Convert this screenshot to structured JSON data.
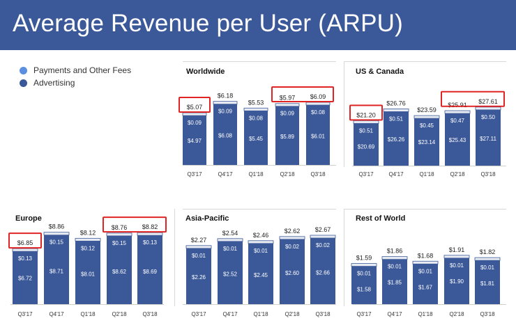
{
  "page": {
    "title": "Average Revenue per User (ARPU)"
  },
  "legend": {
    "items": [
      {
        "label": "Payments and Other Fees",
        "color": "#5b8fe0"
      },
      {
        "label": "Advertising",
        "color": "#3b5999"
      }
    ]
  },
  "colors": {
    "header": "#3b5999",
    "bar": "#3b5999",
    "bar_top": "#e8ebf1",
    "highlight_box": "#e02424",
    "axis": "#888888"
  },
  "chart_data": [
    {
      "type": "bar",
      "stacked": true,
      "title": "Worldwide",
      "categories": [
        "Q3'17",
        "Q4'17",
        "Q1'18",
        "Q2'18",
        "Q3'18"
      ],
      "series": [
        {
          "name": "Advertising",
          "values": [
            4.97,
            6.08,
            5.45,
            5.89,
            6.01
          ],
          "labels": [
            "$4.97",
            "$6.08",
            "$5.45",
            "$5.89",
            "$6.01"
          ]
        },
        {
          "name": "Payments and Other Fees",
          "values": [
            0.09,
            0.09,
            0.08,
            0.09,
            0.08
          ],
          "labels": [
            "$0.09",
            "$0.09",
            "$0.08",
            "$0.09",
            "$0.08"
          ]
        }
      ],
      "totals": [
        5.07,
        6.18,
        5.53,
        5.97,
        6.09
      ],
      "total_labels": [
        "$5.07",
        "$6.18",
        "$5.53",
        "$5.97",
        "$6.09"
      ],
      "highlighted": [
        [
          0
        ],
        [
          3,
          4
        ]
      ],
      "ylim": [
        0,
        6.9
      ]
    },
    {
      "type": "bar",
      "stacked": true,
      "title": "US & Canada",
      "categories": [
        "Q3'17",
        "Q4'17",
        "Q1'18",
        "Q2'18",
        "Q3'18"
      ],
      "series": [
        {
          "name": "Advertising",
          "values": [
            20.69,
            26.26,
            23.14,
            25.43,
            27.11
          ],
          "labels": [
            "$20.69",
            "$26.26",
            "$23.14",
            "$25.43",
            "$27.11"
          ]
        },
        {
          "name": "Payments and Other Fees",
          "values": [
            0.51,
            0.51,
            0.45,
            0.47,
            0.5
          ],
          "labels": [
            "$0.51",
            "$0.51",
            "$0.45",
            "$0.47",
            "$0.50"
          ]
        }
      ],
      "totals": [
        21.2,
        26.76,
        23.59,
        25.91,
        27.61
      ],
      "total_labels": [
        "$21.20",
        "$26.76",
        "$23.59",
        "$25.91",
        "$27.61"
      ],
      "highlighted": [
        [
          0
        ],
        [
          3,
          4
        ]
      ],
      "ylim": [
        0,
        30.5
      ]
    },
    {
      "type": "bar",
      "stacked": true,
      "title": "Europe",
      "categories": [
        "Q3'17",
        "Q4'17",
        "Q1'18",
        "Q2'18",
        "Q3'18"
      ],
      "series": [
        {
          "name": "Advertising",
          "values": [
            6.72,
            8.71,
            8.01,
            8.62,
            8.69
          ],
          "labels": [
            "$6.72",
            "$8.71",
            "$8.01",
            "$8.62",
            "$8.69"
          ]
        },
        {
          "name": "Payments and Other Fees",
          "values": [
            0.13,
            0.15,
            0.12,
            0.15,
            0.13
          ],
          "labels": [
            "$0.13",
            "$0.15",
            "$0.12",
            "$0.15",
            "$0.13"
          ]
        }
      ],
      "totals": [
        6.85,
        8.86,
        8.12,
        8.76,
        8.82
      ],
      "total_labels": [
        "$6.85",
        "$8.86",
        "$8.12",
        "$8.76",
        "$8.82"
      ],
      "highlighted": [
        [
          0
        ],
        [
          3,
          4
        ]
      ],
      "ylim": [
        0,
        9.35
      ]
    },
    {
      "type": "bar",
      "stacked": true,
      "title": "Asia-Pacific",
      "categories": [
        "Q3'17",
        "Q4'17",
        "Q1'18",
        "Q2'18",
        "Q3'18"
      ],
      "series": [
        {
          "name": "Advertising",
          "values": [
            2.26,
            2.52,
            2.45,
            2.6,
            2.66
          ],
          "labels": [
            "$2.26",
            "$2.52",
            "$2.45",
            "$2.60",
            "$2.66"
          ]
        },
        {
          "name": "Payments and Other Fees",
          "values": [
            0.01,
            0.01,
            0.01,
            0.02,
            0.02
          ],
          "labels": [
            "$0.01",
            "$0.01",
            "$0.01",
            "$0.02",
            "$0.02"
          ]
        }
      ],
      "totals": [
        2.27,
        2.54,
        2.46,
        2.62,
        2.67
      ],
      "total_labels": [
        "$2.27",
        "$2.54",
        "$2.46",
        "$2.62",
        "$2.67"
      ],
      "highlighted": [],
      "ylim": [
        0,
        2.67
      ]
    },
    {
      "type": "bar",
      "stacked": true,
      "title": "Rest of World",
      "categories": [
        "Q3'17",
        "Q4'17",
        "Q1'18",
        "Q2'18",
        "Q3'18"
      ],
      "series": [
        {
          "name": "Advertising",
          "values": [
            1.58,
            1.85,
            1.67,
            1.9,
            1.81
          ],
          "labels": [
            "$1.58",
            "$1.85",
            "$1.67",
            "$1.90",
            "$1.81"
          ]
        },
        {
          "name": "Payments and Other Fees",
          "values": [
            0.01,
            0.01,
            0.01,
            0.01,
            0.01
          ],
          "labels": [
            "$0.01",
            "$0.01",
            "$0.01",
            "$0.01",
            "$0.01"
          ]
        }
      ],
      "totals": [
        1.59,
        1.86,
        1.68,
        1.91,
        1.82
      ],
      "total_labels": [
        "$1.59",
        "$1.86",
        "$1.68",
        "$1.91",
        "$1.82"
      ],
      "highlighted": [],
      "ylim": [
        0,
        2.15
      ]
    }
  ]
}
